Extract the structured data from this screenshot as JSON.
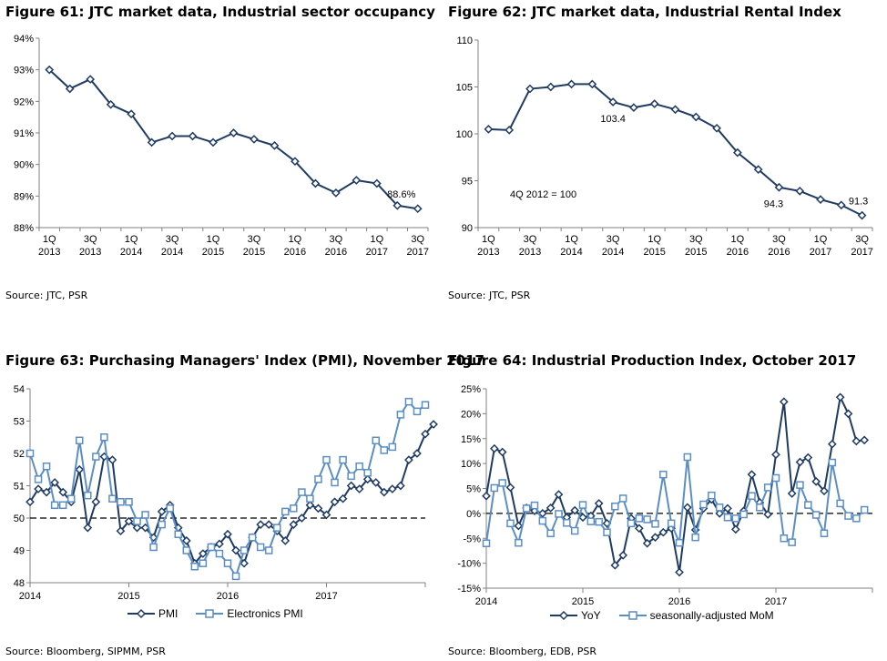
{
  "colors": {
    "dark": "#1F3B63",
    "light": "#5B8EC4",
    "axis": "#808080"
  },
  "chart_data": [
    {
      "id": "fig61",
      "type": "line",
      "title": "Figure 61: JTC market data, Industrial sector occupancy",
      "source": "Source: JTC, PSR",
      "ylim": [
        88,
        94
      ],
      "yticks": [
        88,
        89,
        90,
        91,
        92,
        93,
        94
      ],
      "ytick_labels": [
        "88%",
        "89%",
        "90%",
        "91%",
        "92%",
        "93%",
        "94%"
      ],
      "x": [
        "1Q 2013",
        "2Q 2013",
        "3Q 2013",
        "4Q 2013",
        "1Q 2014",
        "2Q 2014",
        "3Q 2014",
        "4Q 2014",
        "1Q 2015",
        "2Q 2015",
        "3Q 2015",
        "4Q 2015",
        "1Q 2016",
        "2Q 2016",
        "3Q 2016",
        "4Q 2016",
        "1Q 2017",
        "2Q 2017",
        "3Q 2017"
      ],
      "xtick_labels": [
        [
          "1Q",
          "2013"
        ],
        [
          "3Q",
          "2013"
        ],
        [
          "1Q",
          "2014"
        ],
        [
          "3Q",
          "2014"
        ],
        [
          "1Q",
          "2015"
        ],
        [
          "3Q",
          "2015"
        ],
        [
          "1Q",
          "2016"
        ],
        [
          "3Q",
          "2016"
        ],
        [
          "1Q",
          "2017"
        ],
        [
          "3Q",
          "2017"
        ]
      ],
      "series": [
        {
          "values": [
            93.0,
            92.4,
            92.7,
            91.9,
            91.6,
            90.7,
            90.9,
            90.9,
            90.7,
            91.0,
            90.8,
            90.6,
            90.1,
            89.4,
            89.1,
            89.5,
            89.4,
            88.7,
            88.6
          ]
        }
      ],
      "annotations": [
        {
          "text": "88.6%",
          "index": 18
        }
      ]
    },
    {
      "id": "fig62",
      "type": "line",
      "title": "Figure 62: JTC market data, Industrial Rental Index",
      "source": "Source: JTC, PSR",
      "ylim": [
        90,
        110
      ],
      "yticks": [
        90,
        95,
        100,
        105,
        110
      ],
      "ytick_labels": [
        "90",
        "95",
        "100",
        "105",
        "110"
      ],
      "x": [
        "1Q 2013",
        "2Q 2013",
        "3Q 2013",
        "4Q 2013",
        "1Q 2014",
        "2Q 2014",
        "3Q 2014",
        "4Q 2014",
        "1Q 2015",
        "2Q 2015",
        "3Q 2015",
        "4Q 2015",
        "1Q 2016",
        "2Q 2016",
        "3Q 2016",
        "4Q 2016",
        "1Q 2017",
        "2Q 2017",
        "3Q 2017"
      ],
      "xtick_labels": [
        [
          "1Q",
          "2013"
        ],
        [
          "3Q",
          "2013"
        ],
        [
          "1Q",
          "2014"
        ],
        [
          "3Q",
          "2014"
        ],
        [
          "1Q",
          "2015"
        ],
        [
          "3Q",
          "2015"
        ],
        [
          "1Q",
          "2016"
        ],
        [
          "3Q",
          "2016"
        ],
        [
          "1Q",
          "2017"
        ],
        [
          "3Q",
          "2017"
        ]
      ],
      "series": [
        {
          "values": [
            100.5,
            100.4,
            104.8,
            105.0,
            105.3,
            105.3,
            103.4,
            102.8,
            103.2,
            102.6,
            101.8,
            100.6,
            98.0,
            96.2,
            94.3,
            93.9,
            93.0,
            92.4,
            91.3
          ]
        }
      ],
      "annotations": [
        {
          "text": "103.4",
          "index": 6
        },
        {
          "text": "94.3",
          "index": 14
        },
        {
          "text": "91.3",
          "index": 18
        }
      ],
      "note": "4Q 2012 = 100"
    },
    {
      "id": "fig63",
      "type": "line",
      "title": "Figure 63: Purchasing Managers' Index (PMI), November 2017",
      "source": "Source: Bloomberg, SIPMM, PSR",
      "ylim": [
        48,
        54
      ],
      "yticks": [
        48,
        49,
        50,
        51,
        52,
        53,
        54
      ],
      "ytick_labels": [
        "48",
        "49",
        "50",
        "51",
        "52",
        "53",
        "54"
      ],
      "reference_line": 50,
      "xtick_labels": [
        "2014",
        "2015",
        "2016",
        "2017"
      ],
      "xtick_positions": [
        0,
        12,
        24,
        36
      ],
      "x_range": [
        0,
        48
      ],
      "series": [
        {
          "name": "PMI",
          "values": [
            50.5,
            50.9,
            50.8,
            51.1,
            50.8,
            50.5,
            51.5,
            49.7,
            50.5,
            51.9,
            51.8,
            49.6,
            49.9,
            49.7,
            49.7,
            49.4,
            50.2,
            50.4,
            49.7,
            49.3,
            48.6,
            48.9,
            49.1,
            49.2,
            49.5,
            49.0,
            48.6,
            49.4,
            49.8,
            49.8,
            49.6,
            49.3,
            49.8,
            50.0,
            50.4,
            50.3,
            50.1,
            50.5,
            50.6,
            51.0,
            50.9,
            51.2,
            51.1,
            50.8,
            50.9,
            51.0,
            51.8,
            52.0,
            52.6,
            52.9
          ]
        },
        {
          "name": "Electronics PMI",
          "values": [
            52.0,
            51.2,
            51.6,
            50.4,
            50.4,
            50.6,
            52.4,
            50.7,
            51.9,
            52.5,
            50.6,
            50.5,
            50.5,
            49.9,
            50.1,
            49.1,
            49.8,
            50.3,
            49.5,
            49.0,
            48.5,
            48.6,
            49.1,
            48.9,
            48.6,
            48.2,
            49.0,
            49.4,
            49.1,
            49.0,
            49.7,
            50.2,
            50.3,
            50.8,
            50.6,
            51.2,
            51.8,
            51.1,
            51.8,
            51.3,
            51.6,
            51.4,
            52.4,
            52.1,
            52.2,
            53.2,
            53.6,
            53.3,
            53.5
          ]
        }
      ]
    },
    {
      "id": "fig64",
      "type": "line",
      "title": "Figure 64: Industrial Production Index, October 2017",
      "source": "Source: Bloomberg, EDB, PSR",
      "ylim": [
        -15,
        25
      ],
      "yticks": [
        -15,
        -10,
        -5,
        0,
        5,
        10,
        15,
        20,
        25
      ],
      "ytick_labels": [
        "-15%",
        "-10%",
        "-5%",
        "0%",
        "5%",
        "10%",
        "15%",
        "20%",
        "25%"
      ],
      "reference_line": 0,
      "xtick_labels": [
        "2014",
        "2015",
        "2016",
        "2017"
      ],
      "xtick_positions": [
        0,
        12,
        24,
        36
      ],
      "x_range": [
        0,
        48
      ],
      "series": [
        {
          "name": "YoY",
          "values": [
            3.5,
            13.0,
            12.3,
            5.2,
            -2.5,
            1.1,
            0.5,
            0.0,
            1.1,
            3.8,
            -0.8,
            0.6,
            -0.8,
            -0.5,
            2.0,
            -2.0,
            -10.4,
            -8.4,
            -1.0,
            -3.0,
            -6.0,
            -4.8,
            -3.8,
            -3.0,
            -11.8,
            1.2,
            -3.3,
            1.0,
            2.8,
            0.0,
            1.0,
            -3.2,
            0.5,
            7.8,
            2.2,
            -0.2,
            11.8,
            22.4,
            4.0,
            10.3,
            11.2,
            6.4,
            4.5,
            13.9,
            23.3,
            20.0,
            14.5,
            14.7
          ]
        },
        {
          "name": "seasonally-adjusted MoM",
          "values": [
            -6.0,
            5.1,
            6.1,
            -2.0,
            -5.9,
            1.0,
            1.6,
            -1.5,
            -4.0,
            -0.1,
            -1.9,
            -3.5,
            1.7,
            -1.6,
            -1.7,
            -3.8,
            1.4,
            3.0,
            -2.0,
            -1.0,
            -1.2,
            -2.1,
            7.8,
            -2.0,
            -5.9,
            11.3,
            -4.8,
            1.8,
            3.6,
            1.2,
            -0.8,
            -1.0,
            -0.2,
            3.5,
            1.2,
            5.2,
            7.1,
            -5.0,
            -5.8,
            5.7,
            1.7,
            -0.3,
            -4.0,
            10.2,
            2.0,
            -0.5,
            -1.0,
            0.7
          ]
        }
      ]
    }
  ],
  "legends": {
    "fig63": [
      {
        "label": "PMI",
        "style": "dark"
      },
      {
        "label": "Electronics PMI",
        "style": "light"
      }
    ],
    "fig64": [
      {
        "label": "YoY",
        "style": "dark"
      },
      {
        "label": "seasonally-adjusted MoM",
        "style": "light"
      }
    ]
  }
}
